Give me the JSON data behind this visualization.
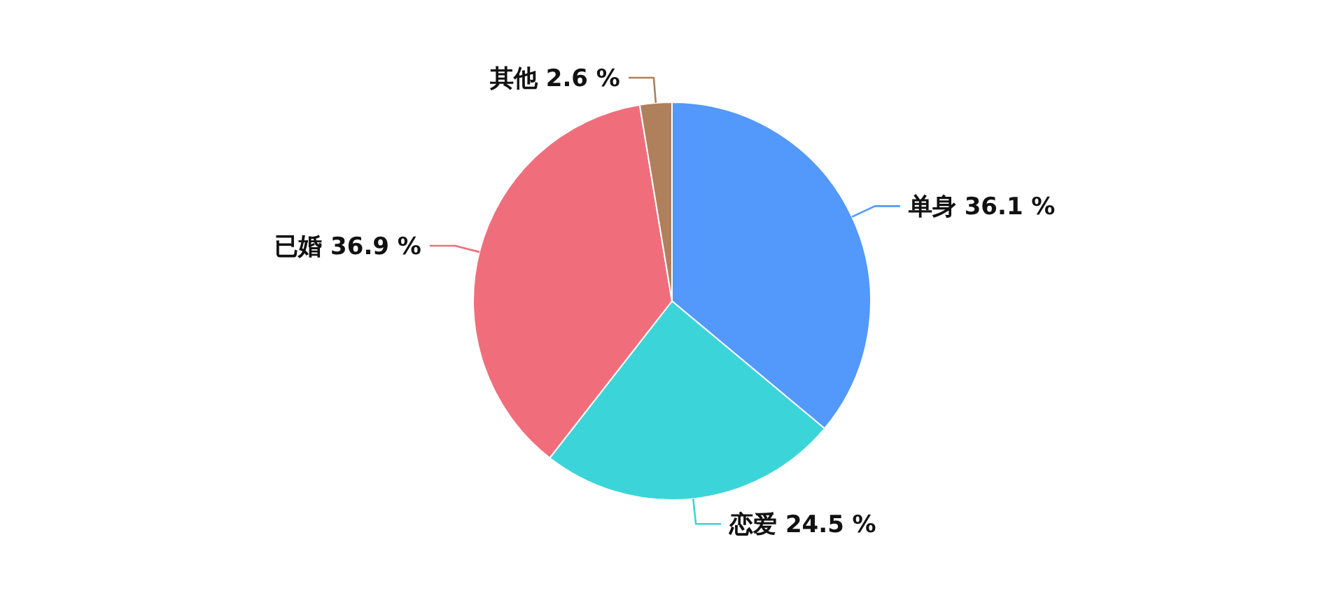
{
  "chart_data": {
    "type": "pie",
    "categories": [
      "单身",
      "恋爱",
      "已婚",
      "其他"
    ],
    "values": [
      36.1,
      24.5,
      36.9,
      2.6
    ],
    "value_labels": [
      "36.1 %",
      "24.5 %",
      "36.9 %",
      "2.6 %"
    ],
    "colors": [
      "#5398fb",
      "#3bd5d9",
      "#f06e7b",
      "#b07f5c"
    ]
  }
}
